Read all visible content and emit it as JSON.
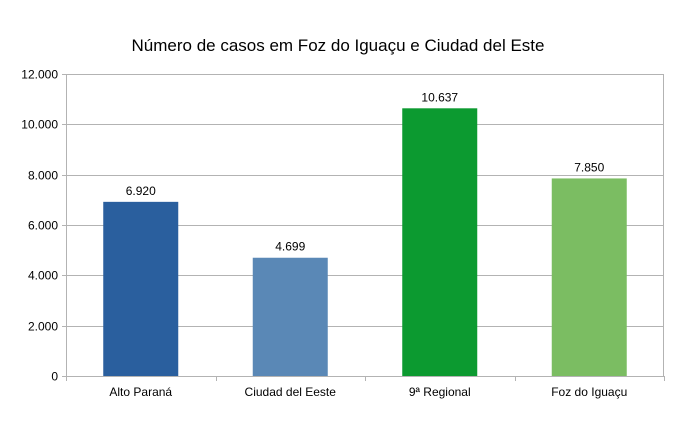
{
  "chart_data": {
    "type": "bar",
    "title": "Número de casos em Foz do Iguaçu e Ciudad del Este",
    "xlabel": "",
    "ylabel": "",
    "categories": [
      "Alto Paraná",
      "Ciudad del Eeste",
      "9ª Regional",
      "Foz do Iguaçu"
    ],
    "values": [
      6920,
      4699,
      10637,
      7850
    ],
    "value_labels": [
      "6.920",
      "4.699",
      "10.637",
      "7.850"
    ],
    "bar_colors": [
      "#2a5f9e",
      "#5a88b6",
      "#0c9a30",
      "#7bbd62"
    ],
    "ylim": [
      0,
      12000
    ],
    "yticks": [
      0,
      2000,
      4000,
      6000,
      8000,
      10000,
      12000
    ],
    "ytick_labels": [
      "0",
      "2.000",
      "4.000",
      "6.000",
      "8.000",
      "10.000",
      "12.000"
    ],
    "grid": true,
    "legend": "none"
  }
}
